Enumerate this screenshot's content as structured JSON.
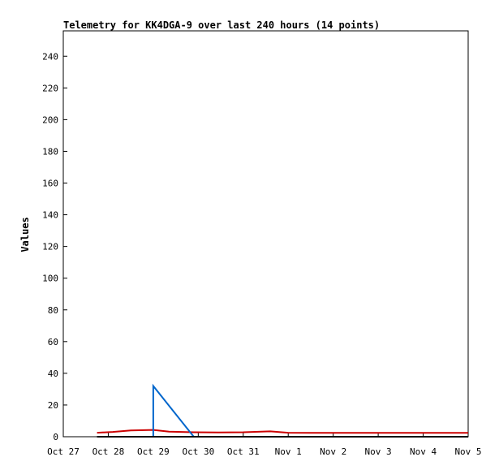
{
  "chart_data": {
    "type": "line",
    "title": "Telemetry for KK4DGA-9 over last 240 hours (14 points)",
    "xlabel": "",
    "ylabel": "Values",
    "x_ticks": [
      "Oct 27",
      "Oct 28",
      "Oct 29",
      "Oct 30",
      "Oct 31",
      "Nov 1",
      "Nov 2",
      "Nov 3",
      "Nov 4",
      "Nov 5"
    ],
    "y_ticks": [
      0,
      20,
      40,
      60,
      80,
      100,
      120,
      140,
      160,
      180,
      200,
      220,
      240
    ],
    "xlim": [
      0,
      9
    ],
    "ylim": [
      0,
      256
    ],
    "grid": false,
    "legend": "none",
    "series": [
      {
        "color": "#cc0000",
        "points": [
          [
            0.75,
            2.5
          ],
          [
            1.1,
            3.0
          ],
          [
            1.5,
            4.0
          ],
          [
            2.0,
            4.3
          ],
          [
            2.35,
            3.2
          ],
          [
            2.9,
            2.8
          ],
          [
            3.45,
            2.7
          ],
          [
            4.0,
            2.8
          ],
          [
            4.6,
            3.4
          ],
          [
            5.0,
            2.5
          ],
          [
            6.0,
            2.4
          ],
          [
            7.0,
            2.4
          ],
          [
            8.0,
            2.4
          ],
          [
            9.0,
            2.4
          ]
        ]
      },
      {
        "color": "#0066cc",
        "points": [
          [
            2.0,
            0
          ],
          [
            2.0,
            32
          ],
          [
            2.9,
            0
          ]
        ]
      },
      {
        "color": "#000000",
        "points": [
          [
            0.75,
            0
          ],
          [
            9.0,
            0
          ]
        ]
      }
    ]
  }
}
